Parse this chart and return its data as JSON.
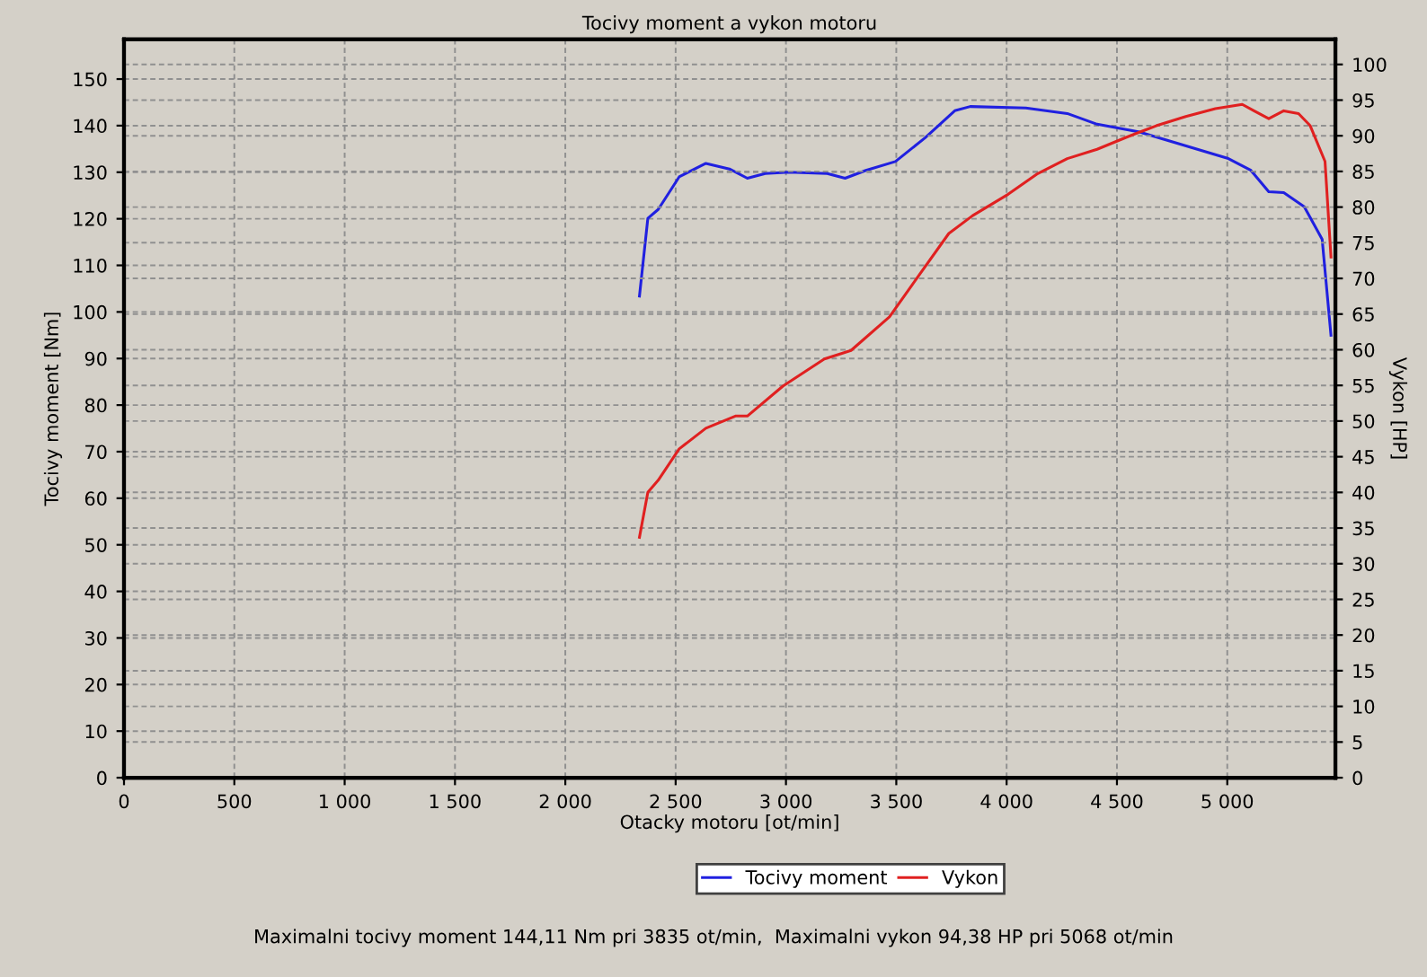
{
  "chart_data": {
    "type": "line",
    "title": "Tocivy moment a vykon motoru",
    "xlabel": "Otacky motoru [ot/min]",
    "ylabel": "Tocivy moment [Nm]",
    "y2label": "Vykon [HP]",
    "annotations": [
      "Maximalni tocivy moment 144,11 Nm pri 3835 ot/min,  Maximalni vykon 94,38 HP pri 5068 ot/min"
    ],
    "xlim": [
      0,
      5490
    ],
    "xticks": [
      0,
      500,
      {
        "value": 1000,
        "label": "1 000"
      },
      {
        "value": 1500,
        "label": "1 500"
      },
      {
        "value": 2000,
        "label": "2 000"
      },
      {
        "value": 2500,
        "label": "2 500"
      },
      {
        "value": 3000,
        "label": "3 000"
      },
      {
        "value": 3500,
        "label": "3 500"
      },
      {
        "value": 4000,
        "label": "4 000"
      },
      {
        "value": 4500,
        "label": "4 500"
      },
      {
        "value": 5000,
        "label": "5 000"
      }
    ],
    "ylim": [
      0,
      158.5
    ],
    "yticks": [
      0,
      10,
      20,
      30,
      40,
      50,
      60,
      70,
      80,
      90,
      100,
      110,
      120,
      130,
      140,
      150
    ],
    "y2lim": [
      0,
      103.5
    ],
    "y2ticks": [
      0,
      5,
      10,
      15,
      20,
      25,
      30,
      35,
      40,
      45,
      50,
      55,
      60,
      65,
      70,
      75,
      80,
      85,
      90,
      95,
      100
    ],
    "grid": true,
    "legend": "bottom",
    "marker": "none",
    "line_style": "solid",
    "series": [
      {
        "name": "Tocivy moment",
        "color": "#2020e0",
        "axis": "y",
        "x": [
          2336,
          2374,
          2421,
          2516,
          2637,
          2744,
          2825,
          2906,
          3013,
          3187,
          3268,
          3362,
          3496,
          3631,
          3765,
          3835,
          4087,
          4275,
          4410,
          4597,
          4759,
          5001,
          5107,
          5188,
          5256,
          5349,
          5430,
          5470
        ],
        "values": [
          103.4,
          120.1,
          122,
          129,
          131.9,
          130.7,
          128.7,
          129.7,
          130,
          129.7,
          128.7,
          130.4,
          132.3,
          137.4,
          143.2,
          144.1,
          143.8,
          142.6,
          140.3,
          138.7,
          136.4,
          133,
          130.4,
          125.8,
          125.6,
          122.6,
          115.6,
          95
        ]
      },
      {
        "name": "Vykon",
        "color": "#e02020",
        "axis": "y2",
        "x": [
          2336,
          2374,
          2421,
          2516,
          2637,
          2771,
          2825,
          2986,
          3174,
          3254,
          3295,
          3469,
          3604,
          3738,
          3846,
          4007,
          4141,
          4275,
          4410,
          4544,
          4678,
          4812,
          4946,
          5068,
          5121,
          5188,
          5256,
          5323,
          5376,
          5443,
          5470
        ],
        "values": [
          33.7,
          40,
          41.7,
          46.1,
          49,
          50.7,
          50.7,
          54.9,
          58.7,
          59.5,
          59.9,
          64.6,
          70.5,
          76.3,
          78.8,
          81.8,
          84.7,
          86.8,
          88.1,
          89.8,
          91.4,
          92.7,
          93.8,
          94.4,
          93.5,
          92.4,
          93.5,
          93.1,
          91.4,
          86.4,
          73
        ]
      }
    ]
  }
}
